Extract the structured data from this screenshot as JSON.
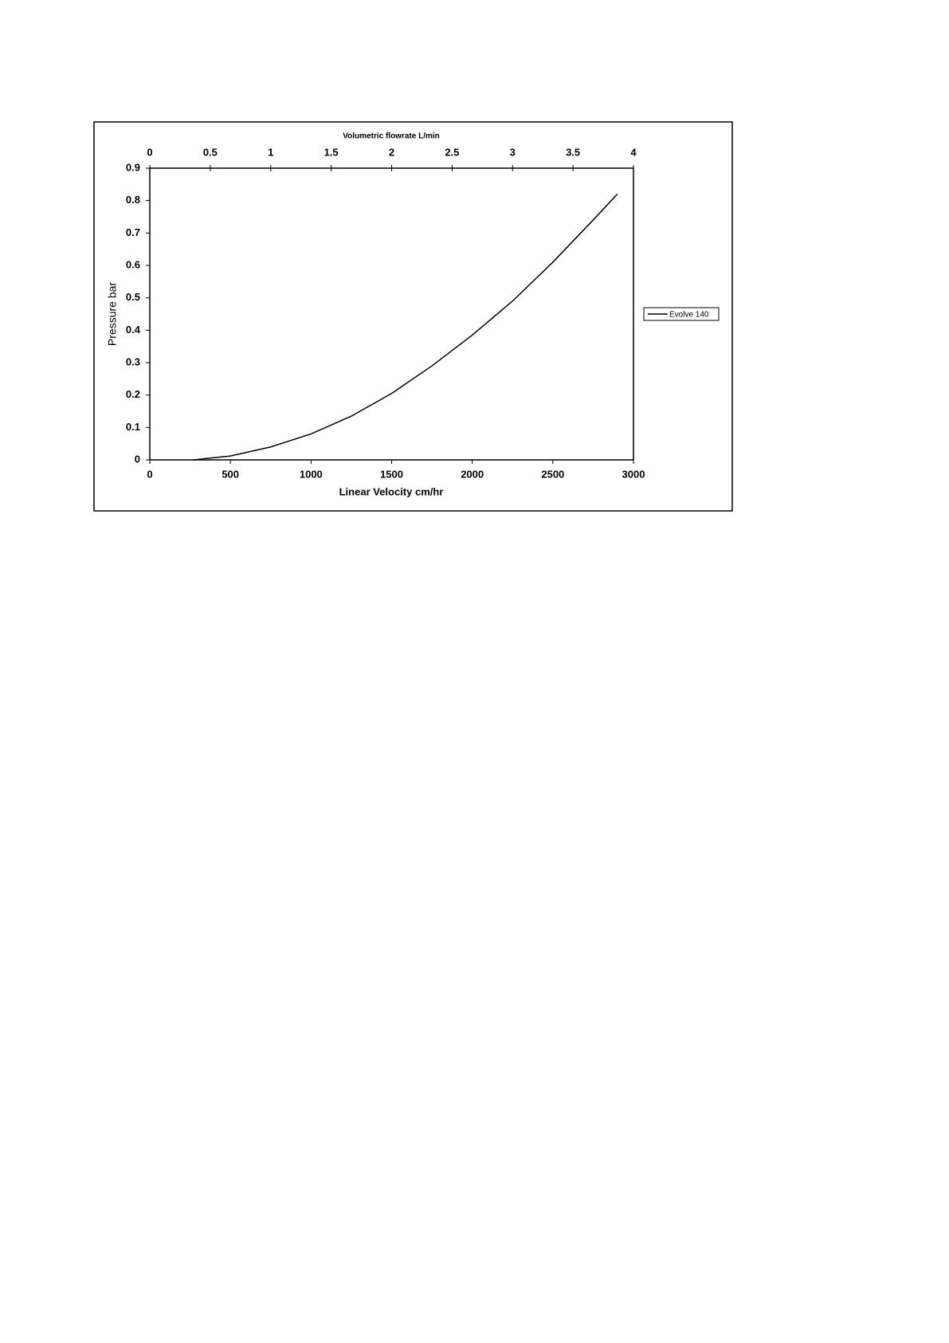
{
  "chart_data": {
    "type": "line",
    "x_label": "Linear Velocity cm/hr",
    "x2_label": "Volumetric flowrate L/min",
    "y_label": "Pressure bar",
    "xlim": [
      0,
      3000
    ],
    "xticks": [
      0,
      500,
      1000,
      1500,
      2000,
      2500,
      3000
    ],
    "x2lim": [
      0,
      4
    ],
    "x2ticks": [
      0,
      0.5,
      1,
      1.5,
      2,
      2.5,
      3,
      3.5,
      4
    ],
    "ylim": [
      0,
      0.9
    ],
    "yticks": [
      0,
      0.1,
      0.2,
      0.3,
      0.4,
      0.5,
      0.6,
      0.7,
      0.8,
      0.9
    ],
    "x": [
      270,
      500,
      750,
      1000,
      1250,
      1500,
      1750,
      2000,
      2250,
      2500,
      2750,
      2900
    ],
    "series": [
      {
        "name": "Evolve 140",
        "color": "#000000",
        "values": [
          0,
          0.012,
          0.04,
          0.08,
          0.135,
          0.205,
          0.29,
          0.385,
          0.49,
          0.61,
          0.74,
          0.82
        ]
      }
    ],
    "legend": "right"
  }
}
